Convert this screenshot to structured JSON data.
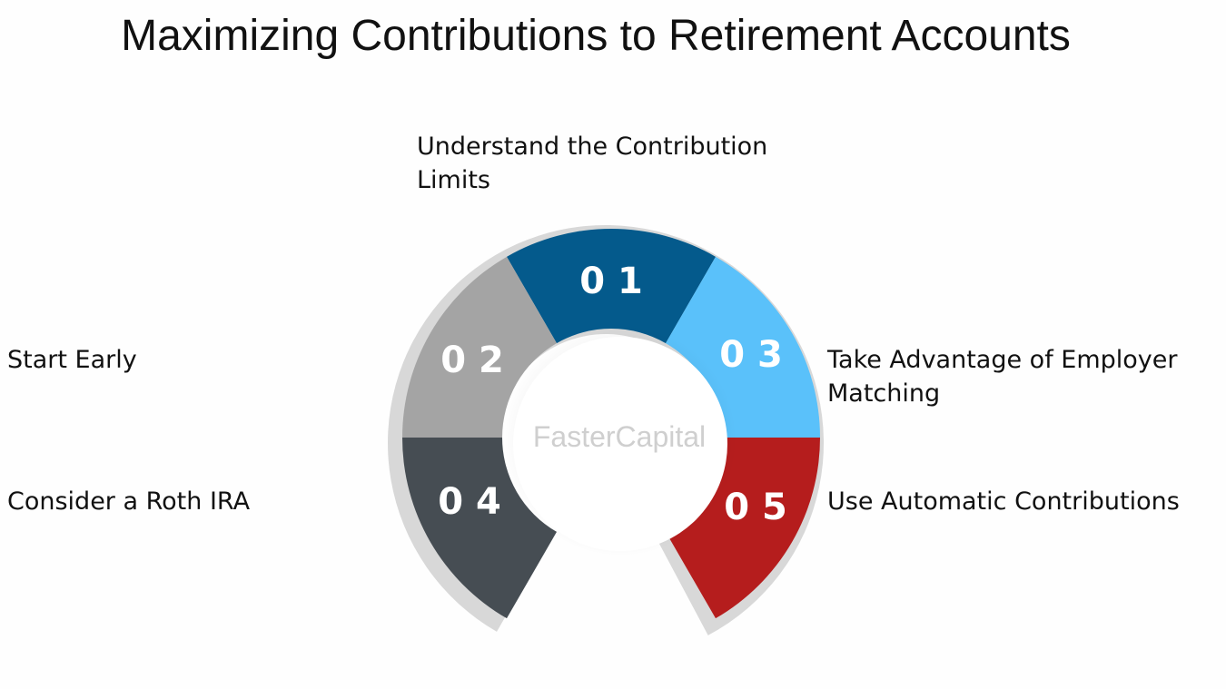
{
  "title": "Maximizing Contributions to Retirement Accounts",
  "watermark": "FasterCapital",
  "segments": [
    {
      "number": "0 1",
      "label": "Understand the Contribution Limits",
      "color": "#045a8c"
    },
    {
      "number": "0 2",
      "label": "Start Early",
      "color": "#a4a4a4"
    },
    {
      "number": "0 3",
      "label": "Take Advantage of Employer Matching",
      "color": "#5ac1fa"
    },
    {
      "number": "0 4",
      "label": "Consider a Roth IRA",
      "color": "#464d53"
    },
    {
      "number": "0 5",
      "label": "Use Automatic Contributions",
      "color": "#b51d1d"
    }
  ]
}
